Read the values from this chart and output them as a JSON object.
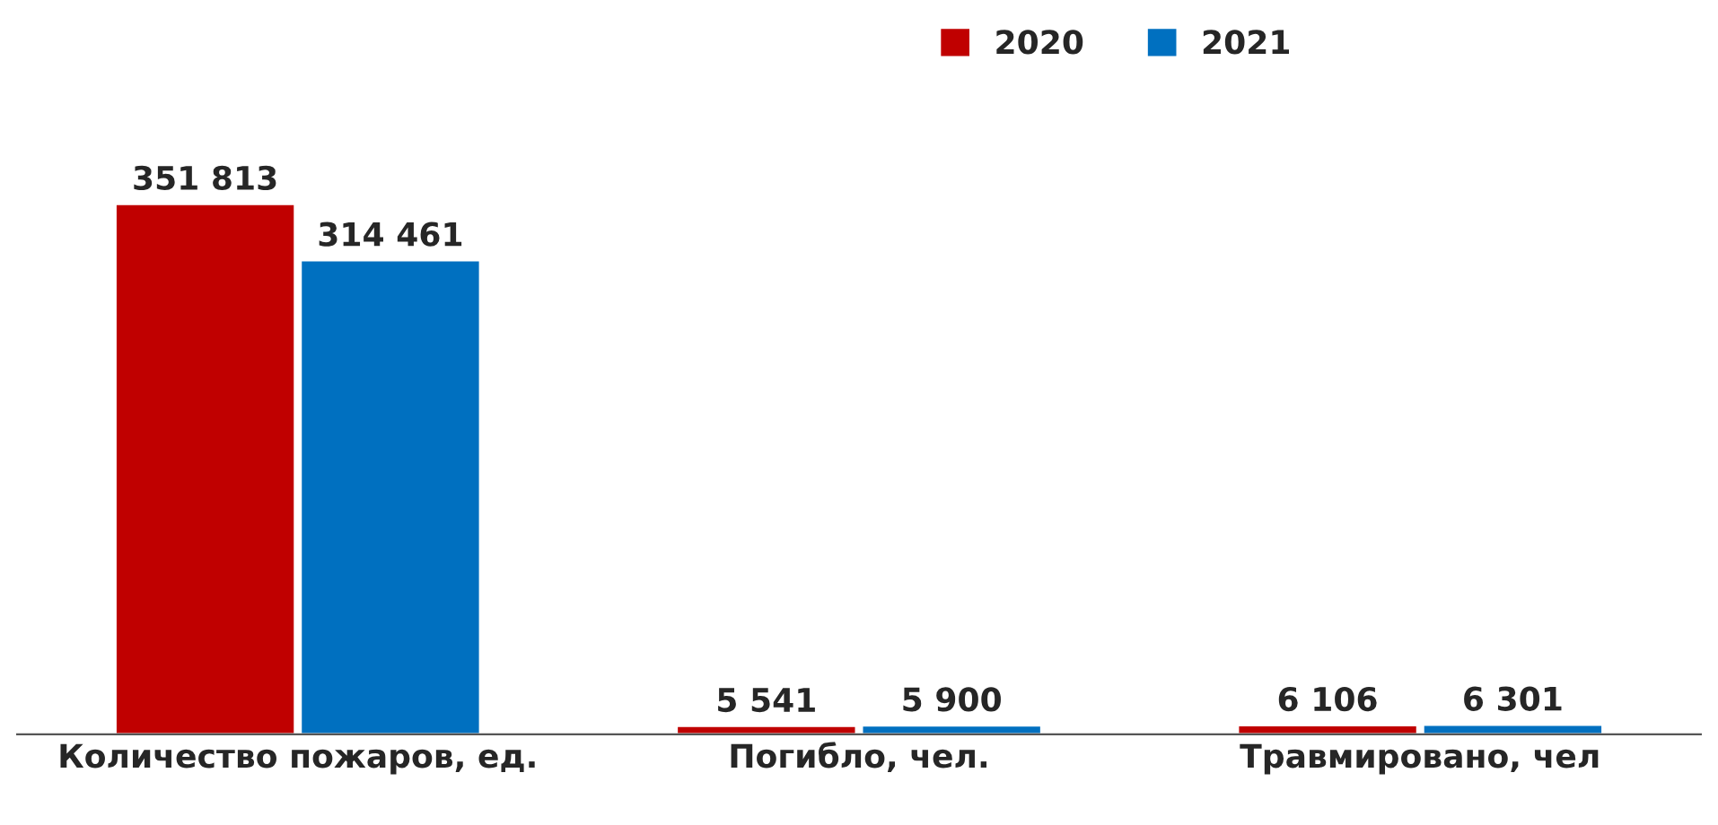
{
  "chart_data": {
    "type": "bar",
    "categories": [
      "Количество пожаров, ед.",
      "Погибло, чел.",
      "Травмировано, чел"
    ],
    "legend": "top",
    "series": [
      {
        "name": "2020",
        "color": "#c00000",
        "values": [
          351813,
          5541,
          6106
        ],
        "value_labels": [
          "351 813",
          "5 541",
          "6 106"
        ]
      },
      {
        "name": "2021",
        "color": "#0070c0",
        "values": [
          314461,
          5900,
          6301
        ],
        "value_labels": [
          "314 461",
          "5 900",
          "6 301"
        ]
      }
    ]
  }
}
